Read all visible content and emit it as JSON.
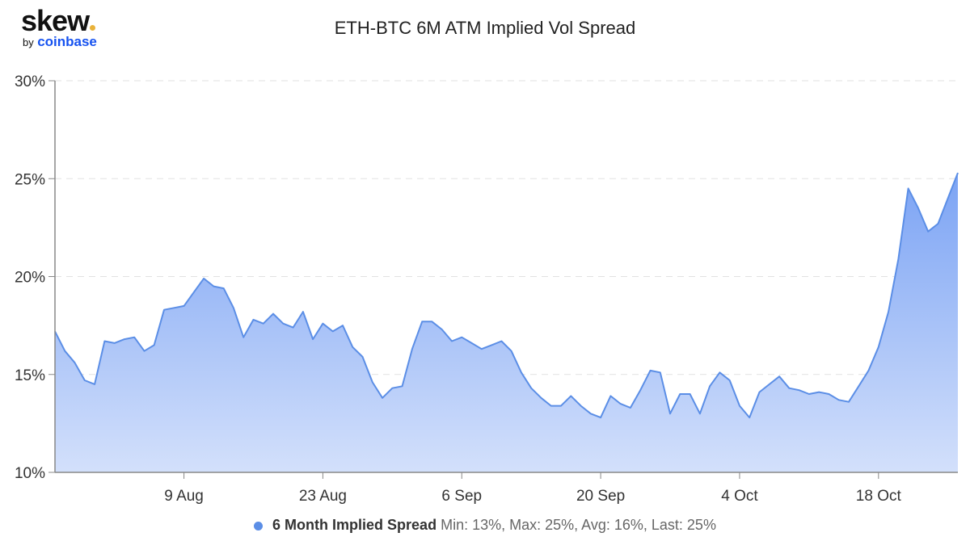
{
  "brand": {
    "name": "skew",
    "by": "by",
    "parent": "coinbase"
  },
  "colors": {
    "line": "#5b8ee6",
    "fill_top": "#7ba3f4",
    "fill_bottom": "#d3e0fb",
    "brand_dot": "#e9b23a",
    "coinbase_blue": "#1652f0"
  },
  "chart_data": {
    "type": "area",
    "title": "ETH-BTC 6M ATM Implied Vol Spread",
    "xlabel": "",
    "ylabel": "",
    "ylim": [
      10,
      30
    ],
    "y_ticks": [
      "10%",
      "15%",
      "20%",
      "25%",
      "30%"
    ],
    "y_tick_values": [
      10,
      15,
      20,
      25,
      30
    ],
    "x_ticks": [
      "9 Aug",
      "23 Aug",
      "6 Sep",
      "20 Sep",
      "4 Oct",
      "18 Oct"
    ],
    "grid": "horizontal dashed",
    "legend_position": "bottom",
    "x": [
      "27 Jul",
      "28 Jul",
      "29 Jul",
      "30 Jul",
      "31 Jul",
      "1 Aug",
      "2 Aug",
      "3 Aug",
      "4 Aug",
      "5 Aug",
      "6 Aug",
      "7 Aug",
      "8 Aug",
      "9 Aug",
      "10 Aug",
      "11 Aug",
      "12 Aug",
      "13 Aug",
      "14 Aug",
      "15 Aug",
      "16 Aug",
      "17 Aug",
      "18 Aug",
      "19 Aug",
      "20 Aug",
      "21 Aug",
      "22 Aug",
      "23 Aug",
      "24 Aug",
      "25 Aug",
      "26 Aug",
      "27 Aug",
      "28 Aug",
      "29 Aug",
      "30 Aug",
      "31 Aug",
      "1 Sep",
      "2 Sep",
      "3 Sep",
      "4 Sep",
      "5 Sep",
      "6 Sep",
      "7 Sep",
      "8 Sep",
      "9 Sep",
      "10 Sep",
      "11 Sep",
      "12 Sep",
      "13 Sep",
      "14 Sep",
      "15 Sep",
      "16 Sep",
      "17 Sep",
      "18 Sep",
      "19 Sep",
      "20 Sep",
      "21 Sep",
      "22 Sep",
      "23 Sep",
      "24 Sep",
      "25 Sep",
      "26 Sep",
      "27 Sep",
      "28 Sep",
      "29 Sep",
      "30 Sep",
      "1 Oct",
      "2 Oct",
      "3 Oct",
      "4 Oct",
      "5 Oct",
      "6 Oct",
      "7 Oct",
      "8 Oct",
      "9 Oct",
      "10 Oct",
      "11 Oct",
      "12 Oct",
      "13 Oct",
      "14 Oct",
      "15 Oct",
      "16 Oct",
      "17 Oct",
      "18 Oct",
      "19 Oct",
      "20 Oct",
      "21 Oct",
      "22 Oct",
      "23 Oct",
      "24 Oct",
      "25 Oct",
      "26 Oct"
    ],
    "series": [
      {
        "name": "6 Month Implied Spread",
        "values": [
          17.2,
          16.2,
          15.6,
          14.7,
          14.5,
          16.7,
          16.6,
          16.8,
          16.9,
          16.2,
          16.5,
          18.3,
          18.4,
          18.5,
          19.2,
          19.9,
          19.5,
          19.4,
          18.4,
          16.9,
          17.8,
          17.6,
          18.1,
          17.6,
          17.4,
          18.2,
          16.8,
          17.6,
          17.2,
          17.5,
          16.4,
          15.9,
          14.6,
          13.8,
          14.3,
          14.4,
          16.3,
          17.7,
          17.7,
          17.3,
          16.7,
          16.9,
          16.6,
          16.3,
          16.5,
          16.7,
          16.2,
          15.1,
          14.3,
          13.8,
          13.4,
          13.4,
          13.9,
          13.4,
          13.0,
          12.8,
          13.9,
          13.5,
          13.3,
          14.2,
          15.2,
          15.1,
          13.0,
          14.0,
          14.0,
          13.0,
          14.4,
          15.1,
          14.7,
          13.4,
          12.8,
          14.1,
          14.5,
          14.9,
          14.3,
          14.2,
          14.0,
          14.1,
          14.0,
          13.7,
          13.6,
          14.4,
          15.2,
          16.4,
          18.2,
          20.9,
          24.5,
          23.5,
          22.3,
          22.7,
          24.0,
          25.3
        ]
      }
    ],
    "legend": {
      "label": "6 Month Implied Spread",
      "stats": "Min: 13%, Max: 25%, Avg: 16%, Last: 25%"
    }
  }
}
